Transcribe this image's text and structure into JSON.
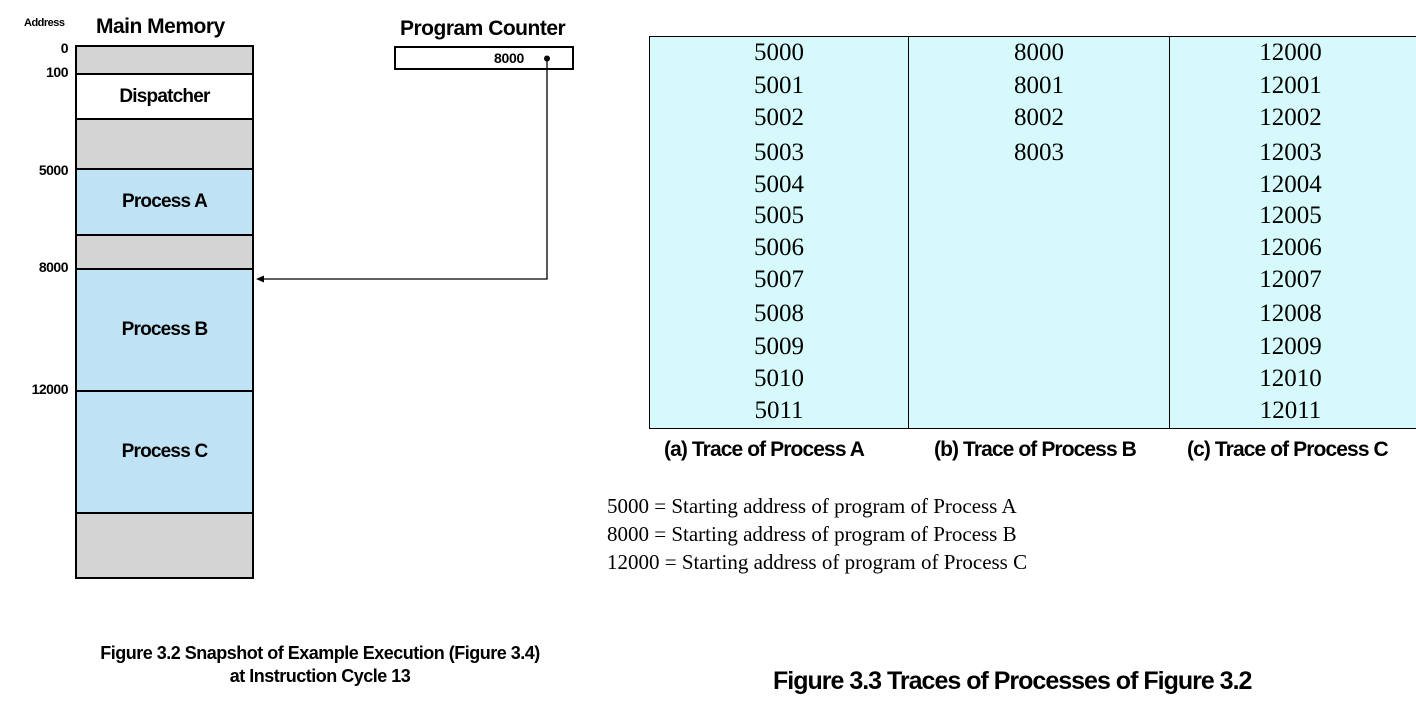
{
  "memory_figure": {
    "address_header": "Address",
    "title": "Main Memory",
    "addresses": [
      "0",
      "100",
      "5000",
      "8000",
      "12000"
    ],
    "segments": {
      "dispatcher": "Dispatcher",
      "process_a": "Process A",
      "process_b": "Process B",
      "process_c": "Process C"
    },
    "program_counter": {
      "title": "Program Counter",
      "value": "8000"
    },
    "caption_line1": "Figure 3.2  Snapshot of Example Execution (Figure 3.4)",
    "caption_line2": "at Instruction Cycle 13"
  },
  "trace_figure": {
    "columns": [
      {
        "caption": "(a) Trace of Process A",
        "values": [
          "5000",
          "5001",
          "5002",
          "5003",
          "5004",
          "5005",
          "5006",
          "5007",
          "5008",
          "5009",
          "5010",
          "5011"
        ]
      },
      {
        "caption": "(b) Trace of Process B",
        "values": [
          "8000",
          "8001",
          "8002",
          "8003"
        ]
      },
      {
        "caption": "(c) Trace of Process C",
        "values": [
          "12000",
          "12001",
          "12002",
          "12003",
          "12004",
          "12005",
          "12006",
          "12007",
          "12008",
          "12009",
          "12010",
          "12011"
        ]
      }
    ],
    "legend": [
      "5000 = Starting address of program of Process A",
      "8000 = Starting address of program of Process B",
      "12000 = Starting address of program of Process C"
    ],
    "caption": "Figure 3.3    Traces of Processes of Figure 3.2"
  },
  "colors": {
    "process_fill": "#bfe3f5",
    "free_fill": "#d4d4d4",
    "dispatcher_fill": "#ffffff",
    "trace_table_fill": "#d6fafb"
  }
}
